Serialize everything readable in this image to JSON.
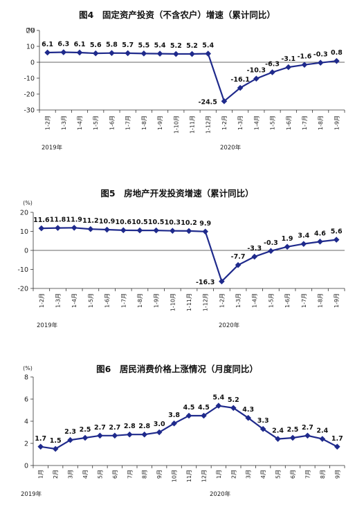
{
  "chart_data": [
    {
      "type": "line",
      "title": "图4　固定资产投资（不含农户）增速（累计同比）",
      "unit": "(%)",
      "categories": [
        "1-2月",
        "1-3月",
        "1-4月",
        "1-5月",
        "1-6月",
        "1-7月",
        "1-8月",
        "1-9月",
        "1-10月",
        "1-11月",
        "1-12月",
        "1-2月",
        "1-3月",
        "1-4月",
        "1-5月",
        "1-6月",
        "1-7月",
        "1-8月",
        "1-9月"
      ],
      "values": [
        6.1,
        6.3,
        6.1,
        5.6,
        5.8,
        5.7,
        5.5,
        5.4,
        5.2,
        5.2,
        5.4,
        -24.5,
        -16.1,
        -10.3,
        -6.3,
        -3.1,
        -1.6,
        -0.3,
        0.8
      ],
      "labels": [
        "6.1",
        "6.3",
        "6.1",
        "5.6",
        "5.8",
        "5.7",
        "5.5",
        "5.4",
        "5.2",
        "5.2",
        "5.4",
        "-24.5",
        "-16.1",
        "-10.3",
        "-6.3",
        "-3.1",
        "-1.6",
        "-0.3",
        "0.8"
      ],
      "year_labels": [
        "2019年",
        "2020年"
      ],
      "ylim": [
        -30,
        20
      ],
      "yticks": [
        20,
        10,
        0,
        -10,
        -20,
        -30
      ],
      "grid": false
    },
    {
      "type": "line",
      "title": "图5　房地产开发投资增速（累计同比）",
      "unit": "(%)",
      "categories": [
        "1-2月",
        "1-3月",
        "1-4月",
        "1-5月",
        "1-6月",
        "1-7月",
        "1-8月",
        "1-9月",
        "1-10月",
        "1-11月",
        "1-12月",
        "1-2月",
        "1-3月",
        "1-4月",
        "1-5月",
        "1-6月",
        "1-7月",
        "1-8月",
        "1-9月"
      ],
      "values": [
        11.6,
        11.8,
        11.9,
        11.2,
        10.9,
        10.6,
        10.5,
        10.5,
        10.3,
        10.2,
        9.9,
        -16.3,
        -7.7,
        -3.3,
        -0.3,
        1.9,
        3.4,
        4.6,
        5.6
      ],
      "labels": [
        "11.6",
        "11.8",
        "11.9",
        "11.2",
        "10.9",
        "10.6",
        "10.5",
        "10.5",
        "10.3",
        "10.2",
        "9.9",
        "-16.3",
        "-7.7",
        "-3.3",
        "-0.3",
        "1.9",
        "3.4",
        "4.6",
        "5.6"
      ],
      "year_labels": [
        "2019年",
        "2020年"
      ],
      "ylim": [
        -20,
        20
      ],
      "yticks": [
        20,
        10,
        0,
        -10,
        -20
      ],
      "grid": false
    },
    {
      "type": "line",
      "title": "图6　居民消费价格上涨情况（月度同比）",
      "unit": "(%)",
      "categories": [
        "1月",
        "2月",
        "3月",
        "4月",
        "5月",
        "6月",
        "7月",
        "8月",
        "9月",
        "10月",
        "11月",
        "12月",
        "1月",
        "2月",
        "3月",
        "4月",
        "5月",
        "6月",
        "7月",
        "8月",
        "9月"
      ],
      "values": [
        1.7,
        1.5,
        2.3,
        2.5,
        2.7,
        2.7,
        2.8,
        2.8,
        3.0,
        3.8,
        4.5,
        4.5,
        5.4,
        5.2,
        4.3,
        3.3,
        2.4,
        2.5,
        2.7,
        2.4,
        1.7
      ],
      "labels": [
        "1.7",
        "1.5",
        "2.3",
        "2.5",
        "2.7",
        "2.7",
        "2.8",
        "2.8",
        "3.0",
        "3.8",
        "4.5",
        "4.5",
        "5.4",
        "5.2",
        "4.3",
        "3.3",
        "2.4",
        "2.5",
        "2.7",
        "2.4",
        "1.7"
      ],
      "year_labels": [
        "2019年",
        "2020年"
      ],
      "ylim": [
        0,
        8
      ],
      "yticks": [
        8,
        6,
        4,
        2,
        0
      ],
      "grid": false
    }
  ],
  "colors": {
    "series": "#1f2a8c",
    "axis": "#333333"
  }
}
